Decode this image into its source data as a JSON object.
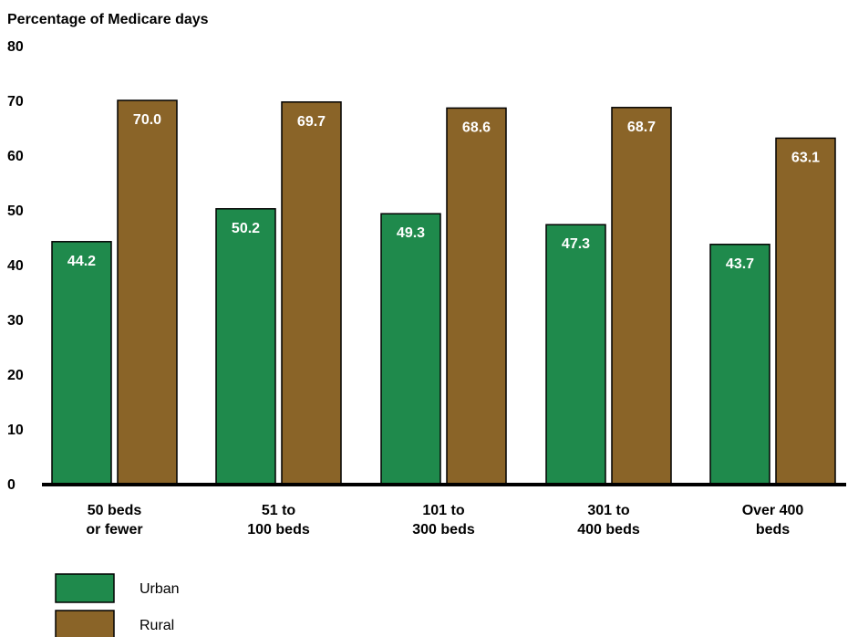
{
  "chart_data": {
    "type": "bar",
    "title": "",
    "ylabel": "Percentage of Medicare days",
    "xlabel": "",
    "ylim": [
      0,
      80
    ],
    "yticks": [
      0,
      10,
      20,
      30,
      40,
      50,
      60,
      70,
      80
    ],
    "categories": [
      [
        "50 beds",
        "or fewer"
      ],
      [
        "51 to",
        "100 beds"
      ],
      [
        "101 to",
        "300 beds"
      ],
      [
        "301 to",
        "400 beds"
      ],
      [
        "Over 400",
        "beds"
      ]
    ],
    "series": [
      {
        "name": "Urban",
        "color": "#1f8a4c",
        "values": [
          44.2,
          50.2,
          49.3,
          47.3,
          43.7
        ],
        "labels": [
          "44.2",
          "50.2",
          "49.3",
          "47.3",
          "43.7"
        ]
      },
      {
        "name": "Rural",
        "color": "#8a6428",
        "values": [
          70.0,
          69.7,
          68.6,
          68.7,
          63.1
        ],
        "labels": [
          "70.0",
          "69.7",
          "68.6",
          "68.7",
          "63.1"
        ]
      }
    ],
    "grid": false,
    "legend_position": "bottom-left"
  }
}
